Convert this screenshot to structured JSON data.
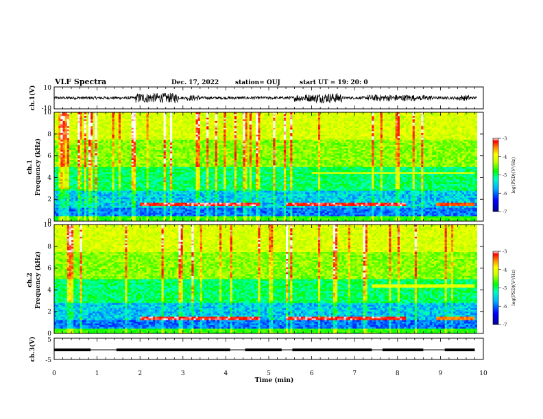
{
  "header": {
    "title": "VLF Spectra",
    "date": "Dec. 17, 2022",
    "station": "station= OUJ",
    "start": "start  UT =   19: 20: 0"
  },
  "colors": {
    "spectro_low": "#00008b",
    "spectro_mid": "#00ff00",
    "spectro_high": "#ff0000",
    "line": "#000000"
  },
  "chart_data": [
    {
      "id": "ch1-waveform",
      "type": "line",
      "ylabel": "ch.1(V)",
      "ylim": [
        -10,
        10
      ],
      "yticks": [
        "10",
        "-10"
      ],
      "xlim": [
        0,
        10
      ],
      "description_level": "waveform amplitude bursts",
      "bursts_min": [
        [
          1.9,
          2.9,
          4.5
        ],
        [
          2.3,
          2.8,
          3.5
        ],
        [
          3.1,
          3.4,
          2.5
        ],
        [
          5.6,
          6.1,
          3.5
        ],
        [
          6.1,
          6.7,
          4.5
        ],
        [
          7.3,
          8.4,
          3.0
        ],
        [
          8.5,
          8.8,
          2.5
        ],
        [
          9.4,
          9.7,
          2.5
        ]
      ],
      "base_amplitude": 1.3
    },
    {
      "id": "ch1-spectrogram",
      "type": "heatmap",
      "ylabel": "Frequency  (kHz)",
      "channel_label": "ch.1",
      "xlim": [
        0,
        10
      ],
      "ylim": [
        0,
        10
      ],
      "yticks": [
        "0",
        "2",
        "4",
        "6",
        "8",
        "10"
      ],
      "colorbar": {
        "label": "log(PSD)(V²/Hz)",
        "ticks": [
          "-3",
          "-4",
          "-5",
          "-6",
          "-7"
        ],
        "range": [
          -7,
          -3
        ]
      },
      "bands": [
        {
          "f_low": 1.35,
          "f_high": 1.75,
          "t_start": 2.0,
          "t_end": 4.8,
          "level": -3.3
        },
        {
          "f_low": 1.35,
          "f_high": 1.75,
          "t_start": 5.4,
          "t_end": 8.2,
          "level": -3.3
        },
        {
          "f_low": 1.35,
          "f_high": 1.75,
          "t_start": 8.9,
          "t_end": 9.8,
          "level": -3.5
        },
        {
          "f_low": 4.3,
          "f_high": 4.6,
          "t_start": 6.0,
          "t_end": 9.8,
          "level": -4.2
        }
      ]
    },
    {
      "id": "ch2-spectrogram",
      "type": "heatmap",
      "ylabel": "Frequency  (kHz)",
      "channel_label": "ch.2",
      "xlim": [
        0,
        10
      ],
      "ylim": [
        0,
        10
      ],
      "yticks": [
        "0",
        "2",
        "4",
        "6",
        "8",
        "10"
      ],
      "colorbar": {
        "label": "log(PSD)(V²/Hz)",
        "ticks": [
          "-3",
          "-4",
          "-5",
          "-6",
          "-7"
        ],
        "range": [
          -7,
          -3
        ]
      },
      "bands": [
        {
          "f_low": 1.2,
          "f_high": 1.6,
          "t_start": 2.0,
          "t_end": 4.8,
          "level": -3.3
        },
        {
          "f_low": 1.2,
          "f_high": 1.6,
          "t_start": 5.4,
          "t_end": 8.2,
          "level": -3.3
        },
        {
          "f_low": 1.2,
          "f_high": 1.6,
          "t_start": 8.9,
          "t_end": 9.8,
          "level": -3.6
        },
        {
          "f_low": 4.2,
          "f_high": 4.5,
          "t_start": 7.4,
          "t_end": 9.8,
          "level": -4.2
        }
      ]
    },
    {
      "id": "ch3-waveform",
      "type": "line",
      "ylabel": "ch.3(V)",
      "ylim": [
        -5,
        5
      ],
      "yticks": [
        "5",
        "-5"
      ],
      "xlim": [
        0,
        10
      ],
      "xlabel": "Time  (min)",
      "xticks": [
        "0",
        "1",
        "2",
        "3",
        "4",
        "5",
        "6",
        "7",
        "8",
        "9",
        "10"
      ],
      "level": -0.5,
      "active_segments_min": [
        [
          0.0,
          0.85
        ],
        [
          1.45,
          4.1
        ],
        [
          4.45,
          5.3
        ],
        [
          5.55,
          7.4
        ],
        [
          7.65,
          8.6
        ],
        [
          9.1,
          9.8
        ]
      ]
    }
  ]
}
